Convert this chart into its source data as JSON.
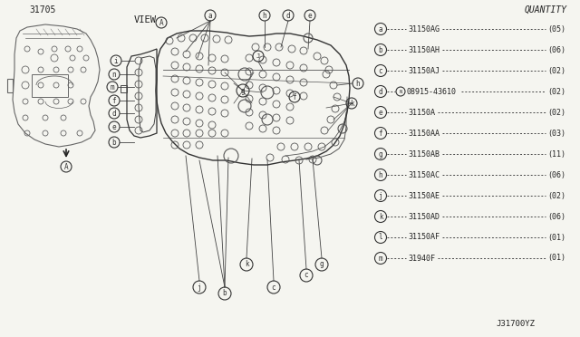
{
  "background_color": "#f5f5f0",
  "part_number_label": "31705",
  "view_label": "VIEW",
  "footer_label": "J31700YZ",
  "quantity_title": "QUANTITY",
  "legend_entries": [
    {
      "key": "a",
      "part": "31150AG",
      "qty": "05"
    },
    {
      "key": "b",
      "part": "31150AH",
      "qty": "06"
    },
    {
      "key": "c",
      "part": "31150AJ",
      "qty": "02"
    },
    {
      "key": "d",
      "part": "08915-43610",
      "qty": "02",
      "note": "N"
    },
    {
      "key": "e",
      "part": "31150A",
      "qty": "02"
    },
    {
      "key": "f",
      "part": "31150AA",
      "qty": "03"
    },
    {
      "key": "g",
      "part": "31150AB",
      "qty": "11"
    },
    {
      "key": "h",
      "part": "31150AC",
      "qty": "06"
    },
    {
      "key": "j",
      "part": "31150AE",
      "qty": "02"
    },
    {
      "key": "k",
      "part": "31150AD",
      "qty": "06"
    },
    {
      "key": "l",
      "part": "31150AF",
      "qty": "01"
    },
    {
      "key": "m",
      "part": "31940F",
      "qty": "01"
    }
  ],
  "line_color": "#444444",
  "text_color": "#222222",
  "sketch_color": "#666666"
}
